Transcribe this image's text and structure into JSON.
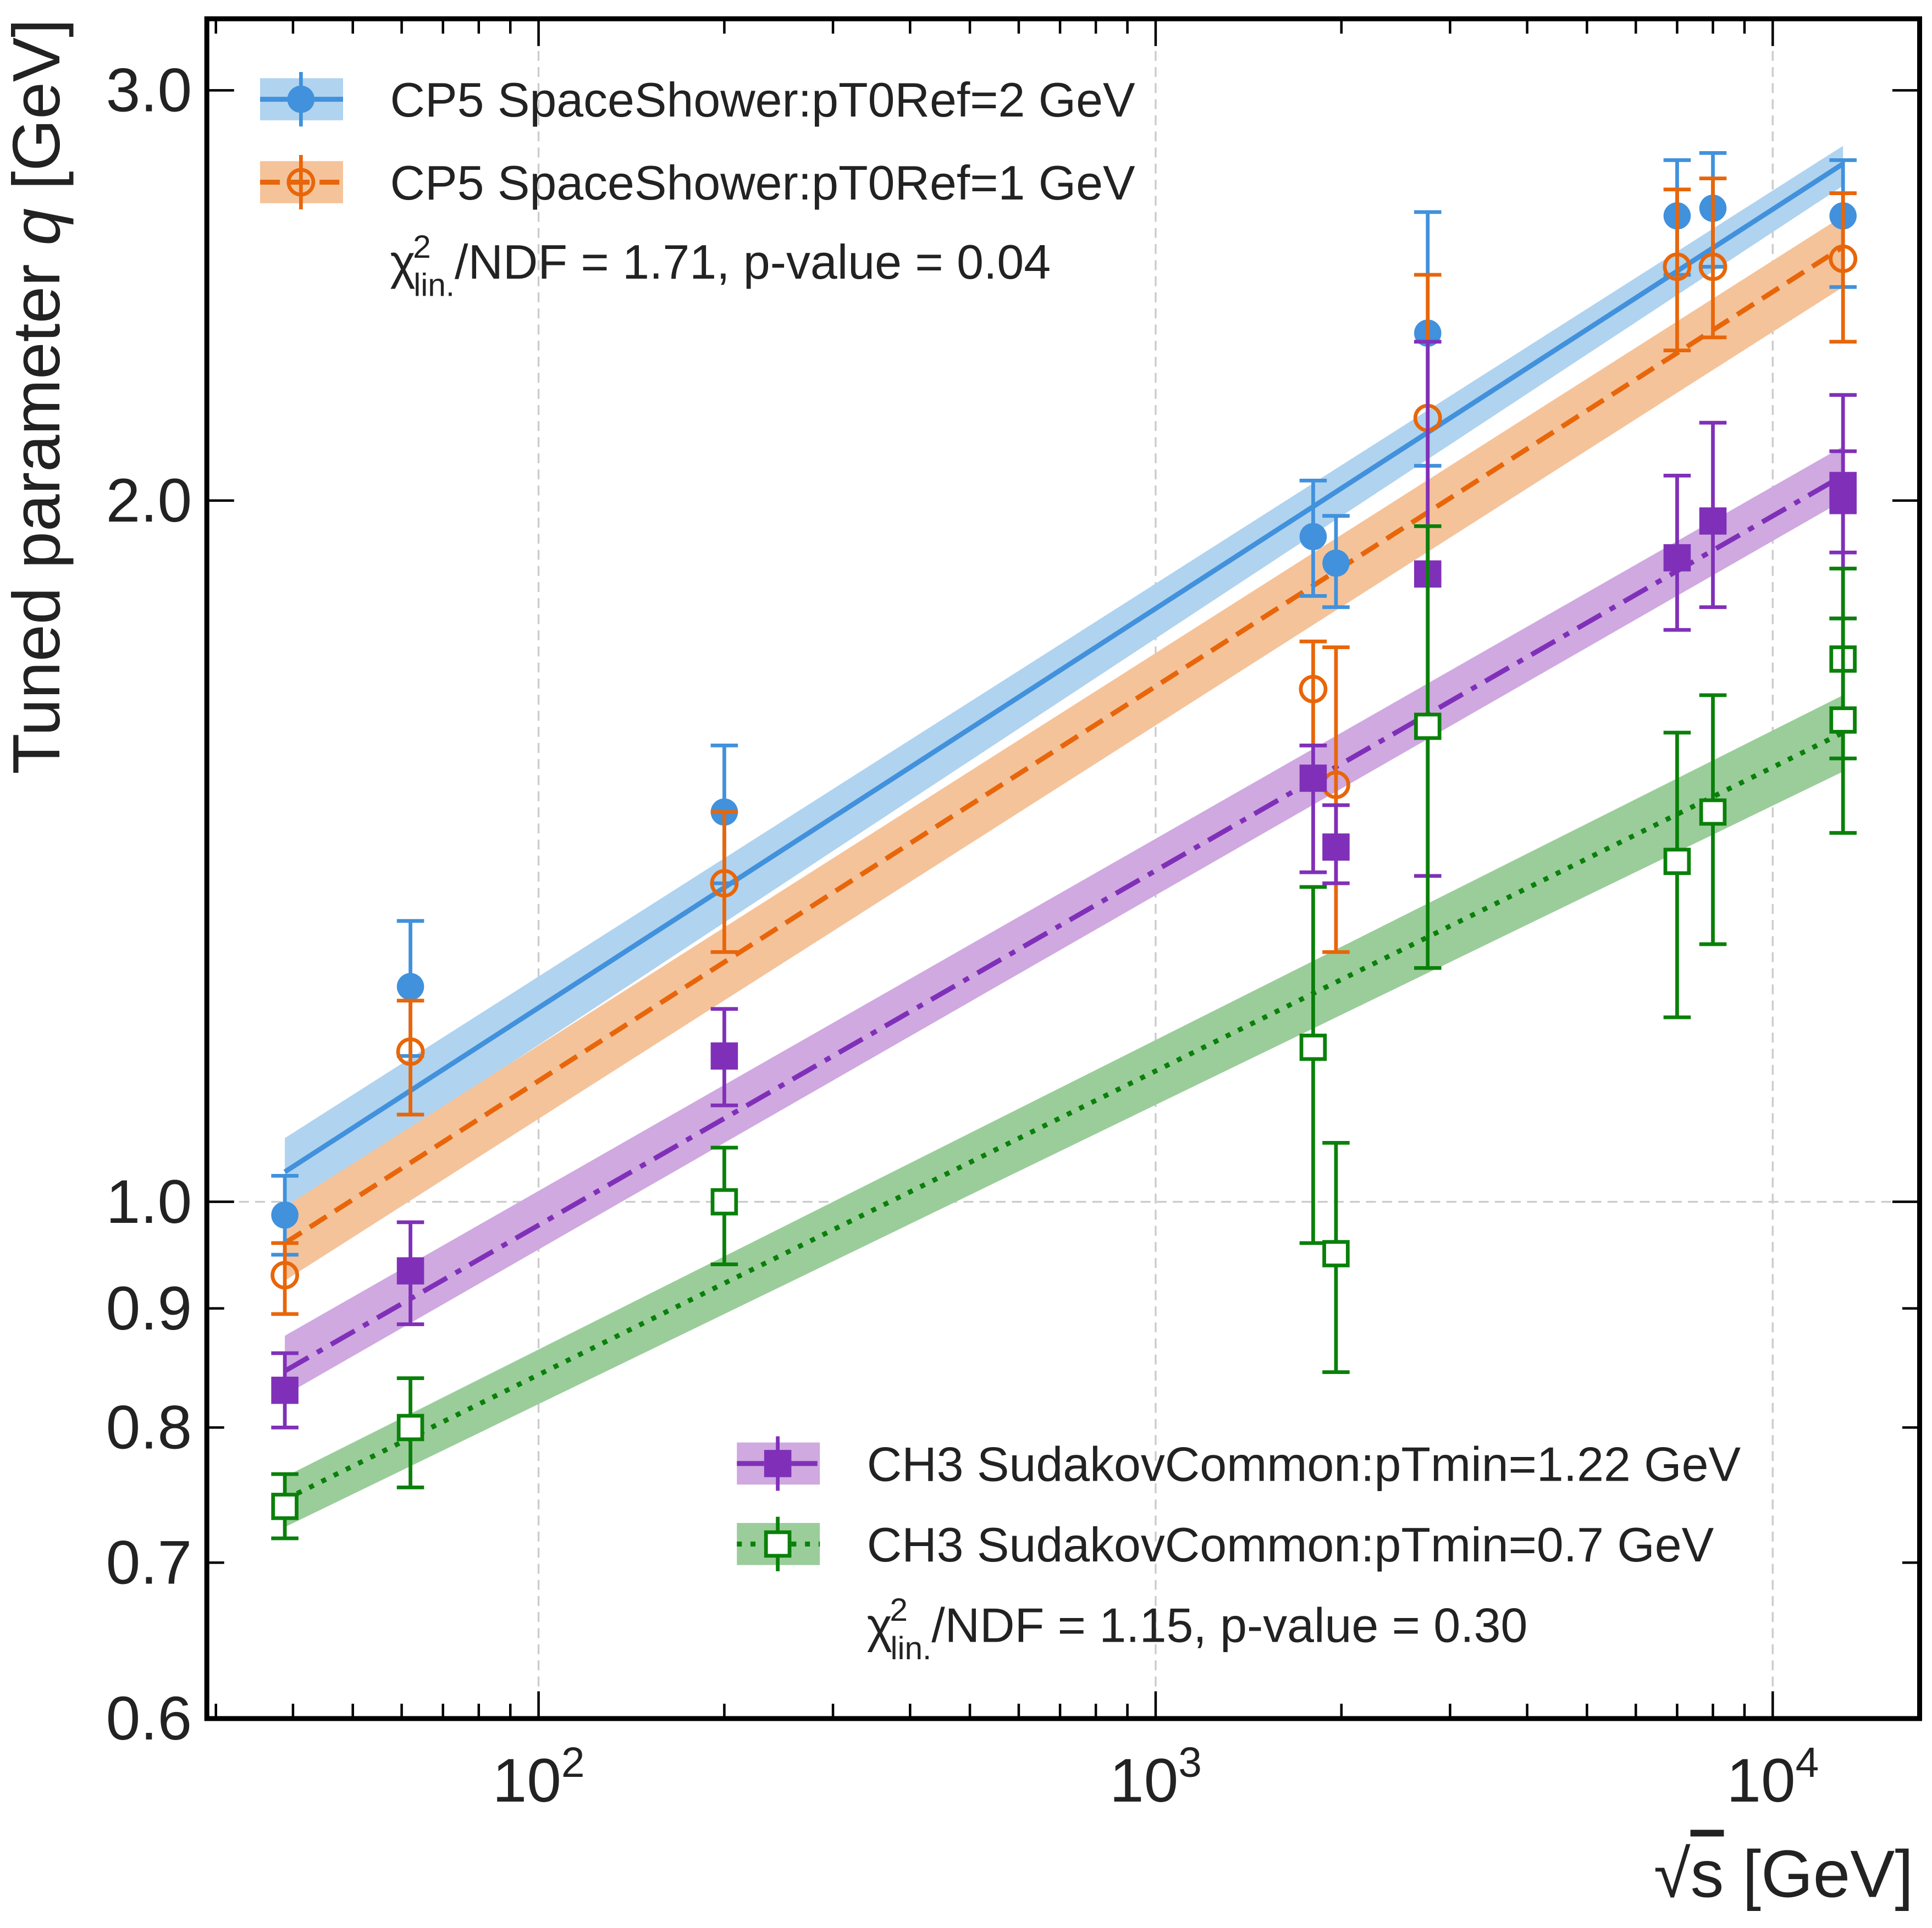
{
  "chart_data": {
    "type": "scatter",
    "xlabel": {
      "prefix": "√",
      "var": "s",
      "unit": " [GeV]"
    },
    "ylabel": {
      "text": "Tuned parameter ",
      "var": "q",
      "unit": " [GeV]"
    },
    "x_scale": "log",
    "y_scale": "log",
    "xlim": [
      29,
      17300
    ],
    "ylim": [
      0.6,
      3.22
    ],
    "x_ticks": [
      {
        "value": 100,
        "base": "10",
        "exp": "2"
      },
      {
        "value": 1000,
        "base": "10",
        "exp": "3"
      },
      {
        "value": 10000,
        "base": "10",
        "exp": "4"
      }
    ],
    "y_ticks": [
      {
        "value": 0.6,
        "label": "0.6"
      },
      {
        "value": 0.7,
        "label": "0.7"
      },
      {
        "value": 0.8,
        "label": "0.8"
      },
      {
        "value": 0.9,
        "label": "0.9"
      },
      {
        "value": 1.0,
        "label": "1.0"
      },
      {
        "value": 2.0,
        "label": "2.0"
      },
      {
        "value": 3.0,
        "label": "3.0"
      }
    ],
    "grid": {
      "x": [
        100,
        1000,
        10000
      ],
      "y": [
        1.0
      ]
    },
    "series": [
      {
        "name": "CP5 SpaceShower:pT0Ref=2 GeV",
        "color": "#4191dc",
        "band_color": "#b0d3ef",
        "marker": "filled-circle",
        "line_style": "solid",
        "points": [
          {
            "x": 38.8,
            "y": 0.987,
            "lo": 0.949,
            "hi": 1.026
          },
          {
            "x": 62,
            "y": 1.237,
            "lo": 1.155,
            "hi": 1.32
          },
          {
            "x": 200,
            "y": 1.47,
            "lo": 1.37,
            "hi": 1.57
          },
          {
            "x": 1800,
            "y": 1.93,
            "lo": 1.82,
            "hi": 2.04
          },
          {
            "x": 1960,
            "y": 1.88,
            "lo": 1.8,
            "hi": 1.97
          },
          {
            "x": 2760,
            "y": 2.36,
            "lo": 2.07,
            "hi": 2.66
          },
          {
            "x": 7000,
            "y": 2.65,
            "lo": 2.5,
            "hi": 2.8
          },
          {
            "x": 8000,
            "y": 2.67,
            "lo": 2.52,
            "hi": 2.82
          },
          {
            "x": 13000,
            "y": 2.65,
            "lo": 2.47,
            "hi": 2.8
          }
        ],
        "fit": {
          "x": [
            38.8,
            13000
          ],
          "y": [
            1.03,
            2.79
          ],
          "band_lo": [
            0.99,
            2.73
          ],
          "band_hi": [
            1.065,
            2.84
          ]
        }
      },
      {
        "name": "CP5 SpaceShower:pT0Ref=1 GeV",
        "color": "#e8660a",
        "band_color": "#f5c39a",
        "marker": "open-circle",
        "line_style": "dashed",
        "points": [
          {
            "x": 38.8,
            "y": 0.93,
            "lo": 0.895,
            "hi": 0.96
          },
          {
            "x": 62,
            "y": 1.16,
            "lo": 1.09,
            "hi": 1.22
          },
          {
            "x": 200,
            "y": 1.37,
            "lo": 1.28,
            "hi": 1.47
          },
          {
            "x": 1800,
            "y": 1.66,
            "lo": 1.57,
            "hi": 1.74
          },
          {
            "x": 1960,
            "y": 1.51,
            "lo": 1.28,
            "hi": 1.73
          },
          {
            "x": 2760,
            "y": 2.17,
            "lo": 1.85,
            "hi": 2.5
          },
          {
            "x": 7000,
            "y": 2.52,
            "lo": 2.32,
            "hi": 2.72
          },
          {
            "x": 8000,
            "y": 2.52,
            "lo": 2.35,
            "hi": 2.75
          },
          {
            "x": 13000,
            "y": 2.54,
            "lo": 2.34,
            "hi": 2.71
          }
        ],
        "fit": {
          "x": [
            38.8,
            13000
          ],
          "y": [
            0.96,
            2.57
          ],
          "band_lo": [
            0.925,
            2.47
          ],
          "band_hi": [
            0.995,
            2.65
          ]
        }
      },
      {
        "name": "CH3 SudakovCommon:pTmin=1.22 GeV",
        "color": "#8030b8",
        "band_color": "#cfa9e0",
        "marker": "filled-square",
        "line_style": "dashdot",
        "points": [
          {
            "x": 38.8,
            "y": 0.83,
            "lo": 0.8,
            "hi": 0.861
          },
          {
            "x": 62,
            "y": 0.934,
            "lo": 0.886,
            "hi": 0.98
          },
          {
            "x": 200,
            "y": 1.155,
            "lo": 1.1,
            "hi": 1.21
          },
          {
            "x": 1800,
            "y": 1.52,
            "lo": 1.385,
            "hi": 1.57
          },
          {
            "x": 1960,
            "y": 1.42,
            "lo": 1.37,
            "hi": 1.48
          },
          {
            "x": 2760,
            "y": 1.86,
            "lo": 1.38,
            "hi": 2.34
          },
          {
            "x": 7000,
            "y": 1.89,
            "lo": 1.76,
            "hi": 2.05
          },
          {
            "x": 8000,
            "y": 1.96,
            "lo": 1.8,
            "hi": 2.16
          },
          {
            "x": 13000,
            "y": 2.03,
            "lo": 1.78,
            "hi": 2.22
          },
          {
            "x": 13000,
            "y": 2.0,
            "lo": 1.9,
            "hi": 2.1
          }
        ],
        "fit": {
          "x": [
            38.8,
            13000
          ],
          "y": [
            0.846,
            2.05
          ],
          "band_lo": [
            0.826,
            2.0
          ],
          "band_hi": [
            0.876,
            2.11
          ]
        }
      },
      {
        "name": "CH3 SudakovCommon:pTmin=0.7 GeV",
        "color": "#0a800a",
        "band_color": "#9bcd9b",
        "marker": "open-square",
        "line_style": "dotted",
        "points": [
          {
            "x": 38.8,
            "y": 0.74,
            "lo": 0.717,
            "hi": 0.764
          },
          {
            "x": 62,
            "y": 0.8,
            "lo": 0.754,
            "hi": 0.84
          },
          {
            "x": 200,
            "y": 1.0,
            "lo": 0.94,
            "hi": 1.055
          },
          {
            "x": 1800,
            "y": 1.165,
            "lo": 0.96,
            "hi": 1.365
          },
          {
            "x": 1960,
            "y": 0.95,
            "lo": 0.845,
            "hi": 1.06
          },
          {
            "x": 2760,
            "y": 1.6,
            "lo": 1.26,
            "hi": 1.95
          },
          {
            "x": 7000,
            "y": 1.4,
            "lo": 1.2,
            "hi": 1.59
          },
          {
            "x": 8000,
            "y": 1.47,
            "lo": 1.29,
            "hi": 1.65
          },
          {
            "x": 13000,
            "y": 1.71,
            "lo": 1.55,
            "hi": 1.87
          },
          {
            "x": 13000,
            "y": 1.61,
            "lo": 1.44,
            "hi": 1.78
          }
        ],
        "fit": {
          "x": [
            38.8,
            13000
          ],
          "y": [
            0.745,
            1.59
          ],
          "band_lo": [
            0.725,
            1.53
          ],
          "band_hi": [
            0.762,
            1.65
          ]
        }
      }
    ],
    "legends": [
      {
        "placement": "top-left",
        "series": [
          0,
          1
        ],
        "stat": {
          "chi": "χ",
          "sup": "2",
          "sub": "lin.",
          "rest": "/NDF = 1.71, p-value = 0.04"
        }
      },
      {
        "placement": "bottom-right",
        "series": [
          2,
          3
        ],
        "stat": {
          "chi": "χ",
          "sup": "2",
          "sub": "lin.",
          "rest": "/NDF = 1.15, p-value = 0.30"
        }
      }
    ]
  }
}
